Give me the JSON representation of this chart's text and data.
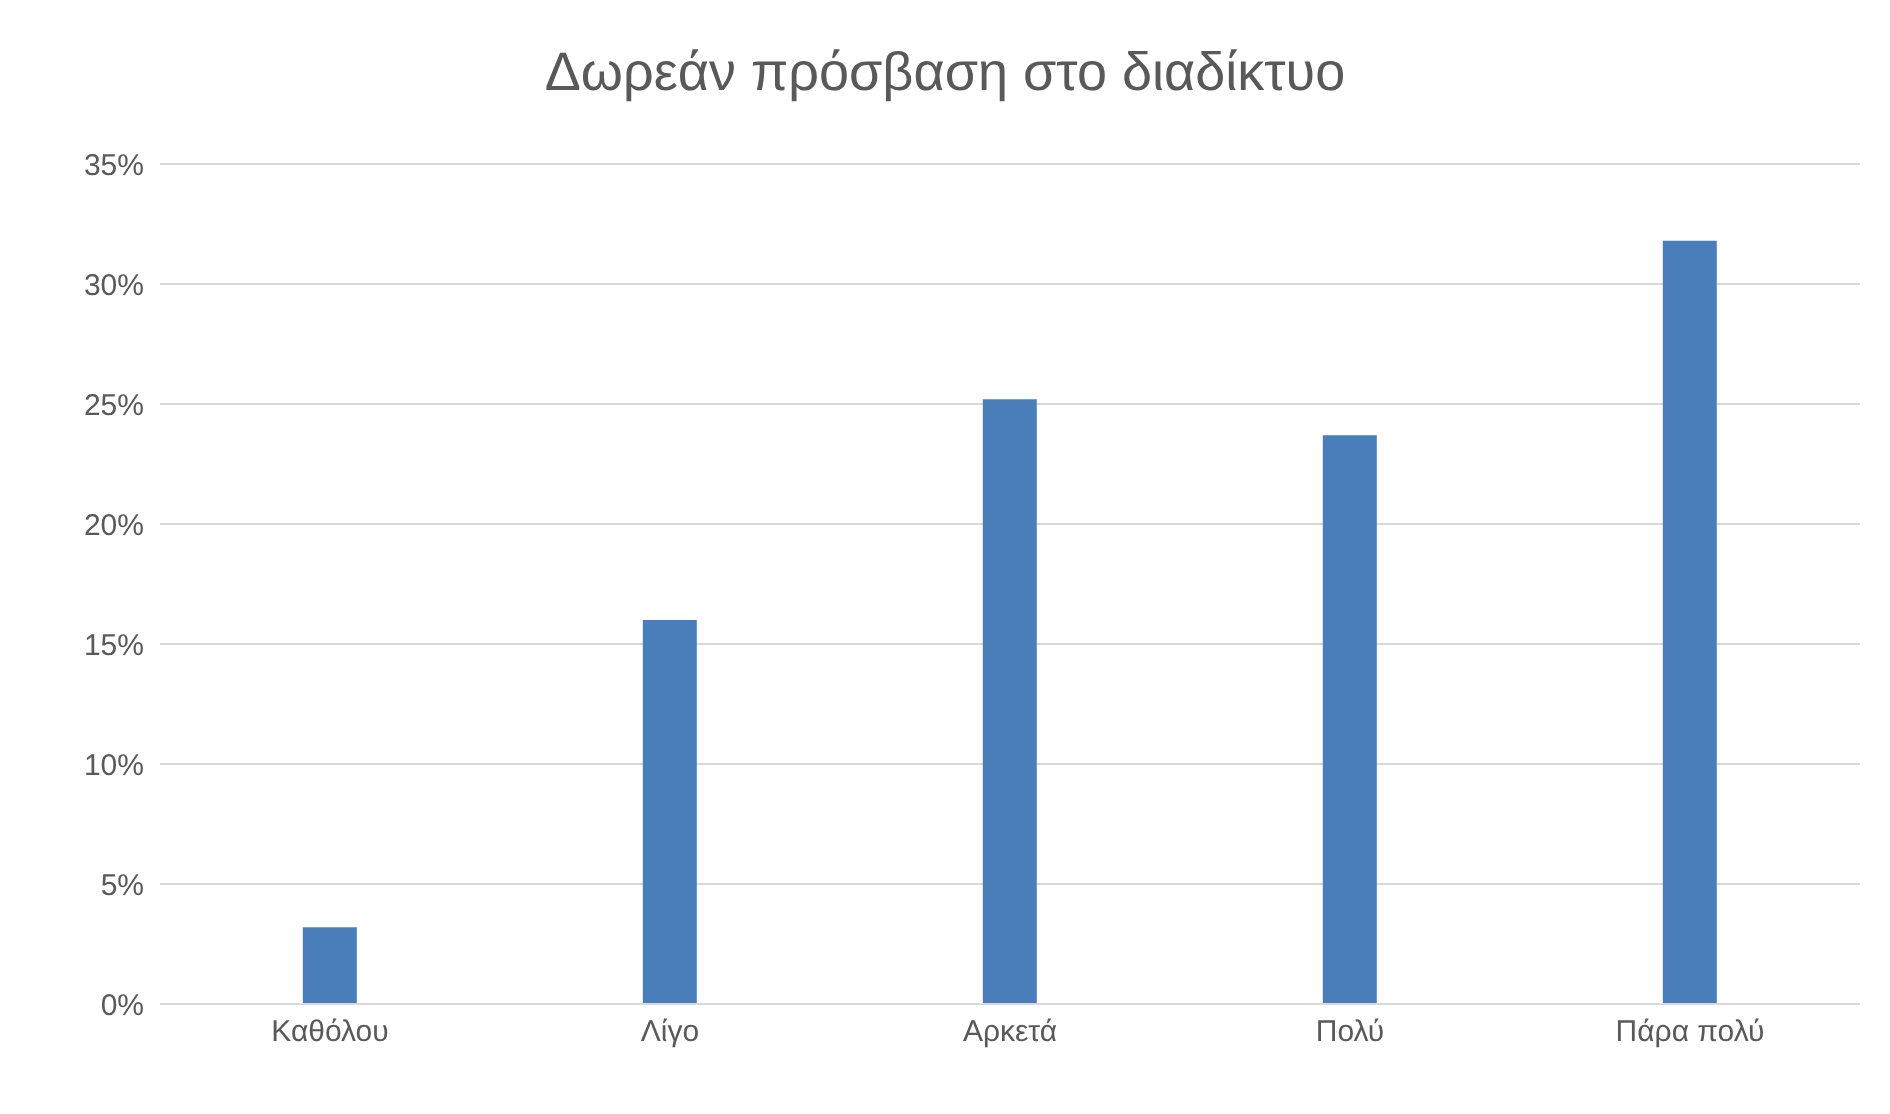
{
  "chart_data": {
    "type": "bar",
    "title": "Δωρεάν πρόσβαση στο διαδίκτυο",
    "categories": [
      "Καθόλου",
      "Λίγο",
      "Αρκετά",
      "Πολύ",
      "Πάρα πολύ"
    ],
    "values": [
      3.2,
      16.0,
      25.2,
      23.7,
      31.8
    ],
    "color": "#4a7ebb",
    "ylim": [
      0,
      35
    ],
    "yticks": [
      {
        "value": 0,
        "label": "0%"
      },
      {
        "value": 5,
        "label": "5%"
      },
      {
        "value": 10,
        "label": "10%"
      },
      {
        "value": 15,
        "label": "15%"
      },
      {
        "value": 20,
        "label": "20%"
      },
      {
        "value": 25,
        "label": "25%"
      },
      {
        "value": 30,
        "label": "30%"
      },
      {
        "value": 35,
        "label": "35%"
      }
    ],
    "grid": "y",
    "legend": false
  }
}
